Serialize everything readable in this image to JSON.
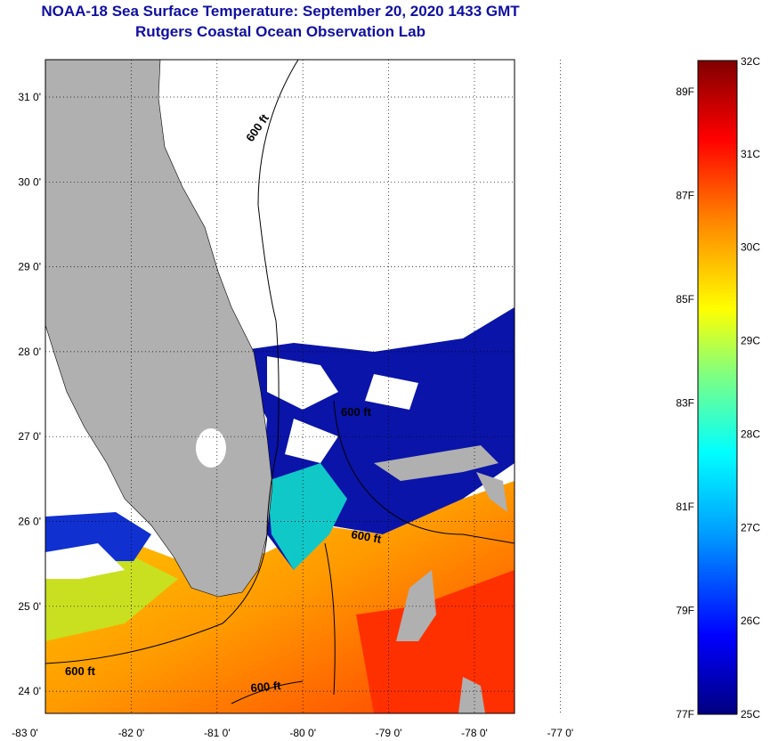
{
  "title": "NOAA-18 Sea Surface Temperature:  September 20, 2020 1433 GMT",
  "subtitle": "Rutgers Coastal Ocean Observation Lab",
  "map": {
    "lat_labels": [
      "31 0'",
      "30 0'",
      "29 0'",
      "28 0'",
      "27 0'",
      "26 0'",
      "25 0'",
      "24 0'"
    ],
    "lon_labels": [
      "-83 0'",
      "-82 0'",
      "-81 0'",
      "-80 0'",
      "-79 0'",
      "-78 0'",
      "-77 0'"
    ],
    "contour_label": "600 ft",
    "contour_label_count": 5,
    "land_color": "#b0b0b0",
    "cloud_color": "#ffffff"
  },
  "colorbar": {
    "celsius_labels": [
      "32C",
      "31C",
      "30C",
      "29C",
      "28C",
      "27C",
      "26C",
      "25C"
    ],
    "fahrenheit_labels": [
      "89F",
      "87F",
      "85F",
      "83F",
      "81F",
      "79F",
      "77F"
    ],
    "min_c": 25,
    "max_c": 32,
    "colors": [
      "#000080",
      "#0000ff",
      "#00a0ff",
      "#00ffff",
      "#80ff80",
      "#ffff00",
      "#ff8000",
      "#ff0000",
      "#800000"
    ]
  }
}
